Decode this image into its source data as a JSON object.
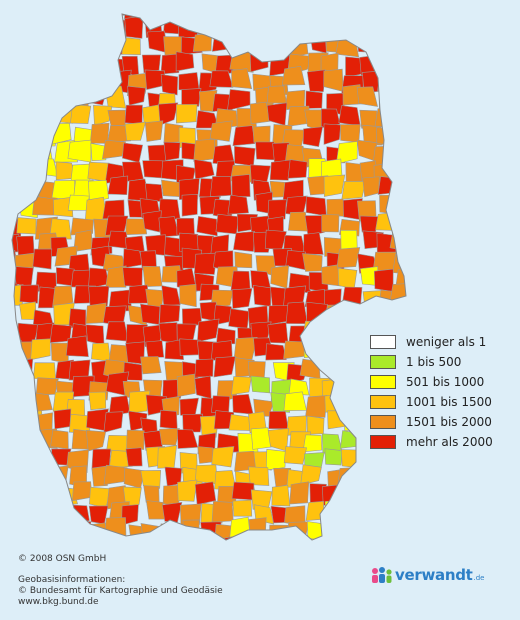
{
  "legend": {
    "items": [
      {
        "label": "weniger als 1",
        "color": "#ffffff"
      },
      {
        "label": "1 bis 500",
        "color": "#aaea2a"
      },
      {
        "label": "501 bis 1000",
        "color": "#ffff00"
      },
      {
        "label": "1001 bis 1500",
        "color": "#ffc20e"
      },
      {
        "label": "1501 bis 2000",
        "color": "#ee8f1c"
      },
      {
        "label": "mehr als 2000",
        "color": "#e32006"
      }
    ]
  },
  "credits": {
    "copyright": "© 2008 OSN GmbH",
    "geo_title": "Geobasisinformationen:",
    "geo_source": "© Bundesamt für Kartographie und Geodäsie",
    "geo_url": "www.bkg.bund.de"
  },
  "logo": {
    "text": "verwandt",
    "suffix": ".de"
  },
  "colors": {
    "background": "#ddeef8",
    "border": "#999999"
  }
}
